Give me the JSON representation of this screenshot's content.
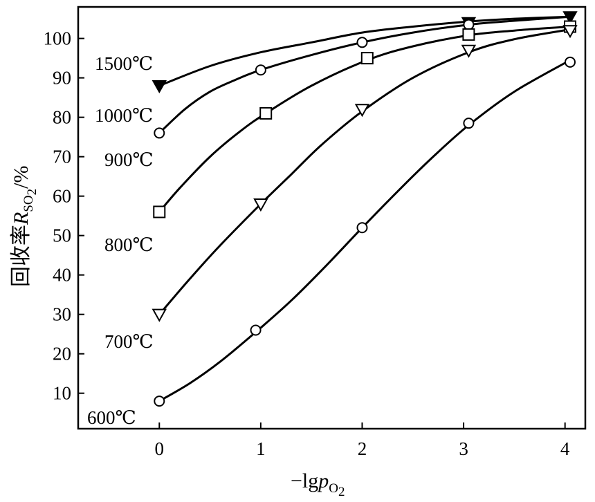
{
  "chart_data": {
    "type": "line",
    "xlabel": {
      "prefix": "−lg",
      "var": "p",
      "sub": "O",
      "subsub": "2"
    },
    "ylabel": {
      "prefix": "回收率",
      "var": "R",
      "sub": "SO",
      "subsub": "2",
      "suffix": "/%"
    },
    "xlim": [
      -0.8,
      4.2
    ],
    "ylim": [
      1,
      108
    ],
    "x_ticks": [
      0,
      1,
      2,
      3,
      4
    ],
    "y_ticks": [
      10,
      20,
      30,
      40,
      50,
      60,
      70,
      80,
      90,
      100
    ],
    "grid": false,
    "series": [
      {
        "name": "1500℃",
        "marker": "triangle-down-filled",
        "points": [
          [
            0,
            88
          ],
          [
            3.05,
            104
          ],
          [
            4.05,
            105.5
          ]
        ],
        "curve": [
          [
            0,
            88
          ],
          [
            0.5,
            93
          ],
          [
            1,
            96.5
          ],
          [
            1.5,
            99
          ],
          [
            2,
            101.5
          ],
          [
            2.5,
            103
          ],
          [
            3.05,
            104.3
          ],
          [
            3.5,
            105
          ],
          [
            4.05,
            105.5
          ]
        ]
      },
      {
        "name": "1000℃",
        "marker": "circle",
        "points": [
          [
            0,
            76
          ],
          [
            1,
            92
          ],
          [
            2,
            99
          ],
          [
            3.05,
            103.5
          ]
        ],
        "curve": [
          [
            0,
            76
          ],
          [
            0.25,
            82
          ],
          [
            0.5,
            86.5
          ],
          [
            0.75,
            89.5
          ],
          [
            1,
            92
          ],
          [
            1.5,
            95.8
          ],
          [
            2,
            99
          ],
          [
            2.5,
            101.5
          ],
          [
            3.05,
            103.5
          ],
          [
            3.5,
            104.5
          ],
          [
            4.05,
            105.5
          ]
        ]
      },
      {
        "name": "900℃",
        "marker": "square",
        "points": [
          [
            0,
            56
          ],
          [
            1.05,
            81
          ],
          [
            2.05,
            95
          ],
          [
            3.05,
            101
          ],
          [
            4.05,
            103
          ]
        ],
        "curve": [
          [
            0,
            56
          ],
          [
            0.2,
            62
          ],
          [
            0.5,
            70
          ],
          [
            0.8,
            76.5
          ],
          [
            1.05,
            81
          ],
          [
            1.5,
            88
          ],
          [
            2.05,
            94.5
          ],
          [
            2.5,
            98
          ],
          [
            3.05,
            100.8
          ],
          [
            3.5,
            102
          ],
          [
            4.05,
            103
          ]
        ]
      },
      {
        "name": "800℃",
        "marker": "triangle-down",
        "points": [
          [
            0,
            30
          ],
          [
            1,
            58
          ],
          [
            2,
            82
          ],
          [
            3.05,
            97
          ],
          [
            4.05,
            102
          ]
        ],
        "curve": [
          [
            0,
            30
          ],
          [
            0.3,
            39
          ],
          [
            0.6,
            47.5
          ],
          [
            1,
            58
          ],
          [
            1.3,
            65.5
          ],
          [
            1.6,
            73
          ],
          [
            2,
            81.5
          ],
          [
            2.5,
            90
          ],
          [
            3.05,
            96.5
          ],
          [
            3.5,
            99.8
          ],
          [
            4.05,
            102.3
          ]
        ]
      },
      {
        "name": "700℃",
        "marker": "circle",
        "points": [
          [
            0,
            8
          ],
          [
            0.95,
            26
          ],
          [
            2,
            52
          ],
          [
            3.05,
            78.5
          ],
          [
            4.05,
            94
          ]
        ],
        "curve": [
          [
            0,
            8
          ],
          [
            0.3,
            12.5
          ],
          [
            0.6,
            18
          ],
          [
            0.95,
            25.5
          ],
          [
            1.3,
            33.5
          ],
          [
            1.65,
            42.5
          ],
          [
            2,
            52
          ],
          [
            2.4,
            62.5
          ],
          [
            2.7,
            70
          ],
          [
            3.05,
            78
          ],
          [
            3.5,
            86.5
          ],
          [
            4.05,
            94.5
          ]
        ]
      },
      {
        "name": "600℃",
        "marker": "none",
        "points": [],
        "curve": []
      }
    ]
  }
}
